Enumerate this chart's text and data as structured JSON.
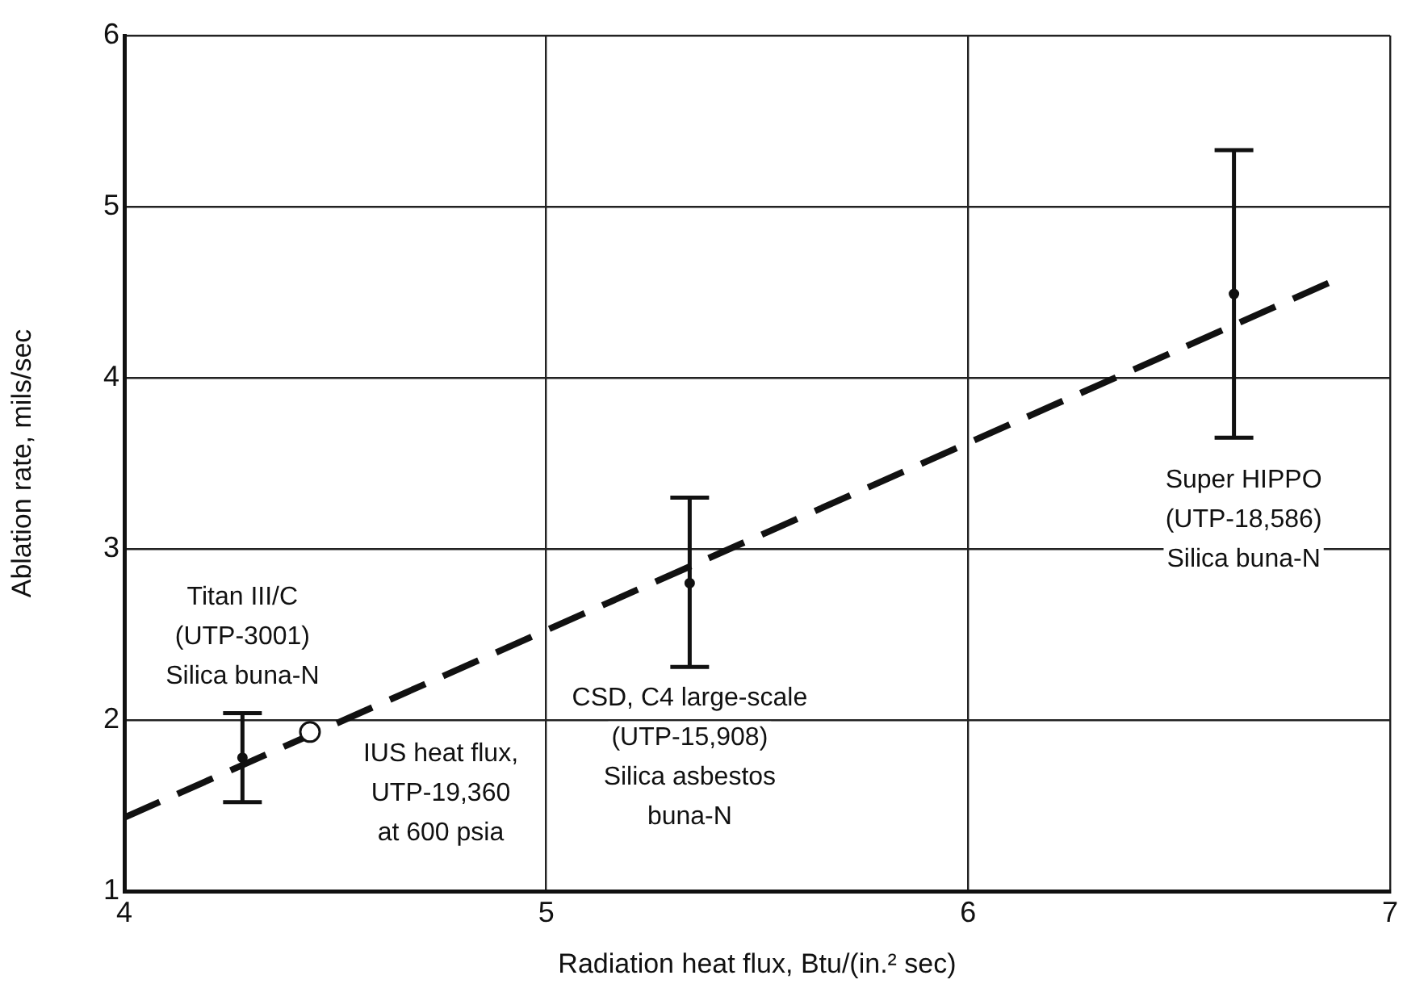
{
  "chart_data": {
    "type": "scatter",
    "xlabel": "Radiation heat flux, Btu/(in.² sec)",
    "ylabel": "Ablation rate, mils/sec",
    "xlim": [
      4,
      7
    ],
    "ylim": [
      1,
      6
    ],
    "xticks": [
      4,
      5,
      6,
      7
    ],
    "yticks": [
      1,
      2,
      3,
      4,
      5,
      6
    ],
    "grid": true,
    "series": [
      {
        "marker": "circle",
        "color": "#111111",
        "x": [
          4.28,
          5.34,
          6.63
        ],
        "values": [
          1.78,
          2.8,
          4.49
        ],
        "errors": [
          [
            1.52,
            2.04
          ],
          [
            2.31,
            3.3
          ],
          [
            3.65,
            5.33
          ]
        ]
      },
      {
        "marker": "circle",
        "color": "#111111",
        "x": [
          4.44
        ],
        "values": [
          1.93
        ]
      },
      {
        "type": "line",
        "marker": "none",
        "line_style": "dashed",
        "color": "#111111",
        "x": [
          4,
          6.86
        ],
        "values": [
          1.43,
          4.56
        ]
      }
    ],
    "annotations": [
      {
        "text": "Titan III/C\n(UTP-3001)\nSilica buna-N",
        "x": 4.28,
        "y": 2.04
      },
      {
        "text": "IUS heat flux,\nUTP-19,360\nat 600 psia",
        "x": 4.44,
        "y": 1.93
      },
      {
        "text": "CSD, C4 large-scale\n(UTP-15,908)\nSilica asbestos\nbuna-N",
        "x": 5.34,
        "y": 2.31
      },
      {
        "text": "Super HIPPO\n(UTP-18,586)\nSilica buna-N",
        "x": 6.63,
        "y": 3.65
      }
    ]
  }
}
